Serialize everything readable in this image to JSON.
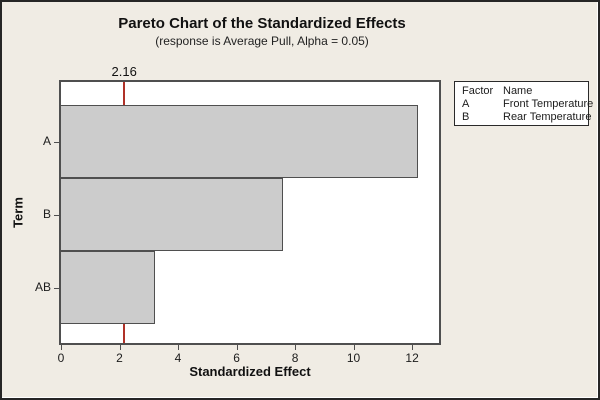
{
  "window": {
    "background_color": "#f0ece4"
  },
  "header": {
    "title": "Pareto Chart of the Standardized Effects",
    "subtitle": "(response is Average Pull, Alpha = 0.05)"
  },
  "chart_data": {
    "type": "bar",
    "orientation": "horizontal",
    "title": "Pareto Chart of the Standardized Effects",
    "subtitle": "(response is Average Pull, Alpha = 0.05)",
    "categories": [
      "A",
      "B",
      "AB"
    ],
    "values": [
      12.2,
      7.6,
      3.2
    ],
    "xlabel": "Standardized Effect",
    "ylabel": "Term",
    "xticks": [
      "0",
      "2",
      "4",
      "6",
      "8",
      "10",
      "12"
    ],
    "xtick_values": [
      0,
      2,
      4,
      6,
      8,
      10,
      12
    ],
    "xlim": [
      0,
      12.92
    ],
    "grid": false,
    "legend_position": "top-right",
    "reference_line": {
      "value": 2.16,
      "label": "2.16"
    }
  },
  "legend": {
    "header": {
      "factor": "Factor",
      "name": "Name"
    },
    "rows": [
      {
        "factor": "A",
        "name": "Front Temperature"
      },
      {
        "factor": "B",
        "name": "Rear Temperature"
      }
    ]
  },
  "colors": {
    "background": "#f0ece4",
    "plot_background": "#ffffff",
    "bar_fill": "#cccccc",
    "bar_border": "#4f4f4f",
    "reference_line": "#b03128",
    "axis": "#4f4f4f",
    "text": "#1c1c1c"
  }
}
